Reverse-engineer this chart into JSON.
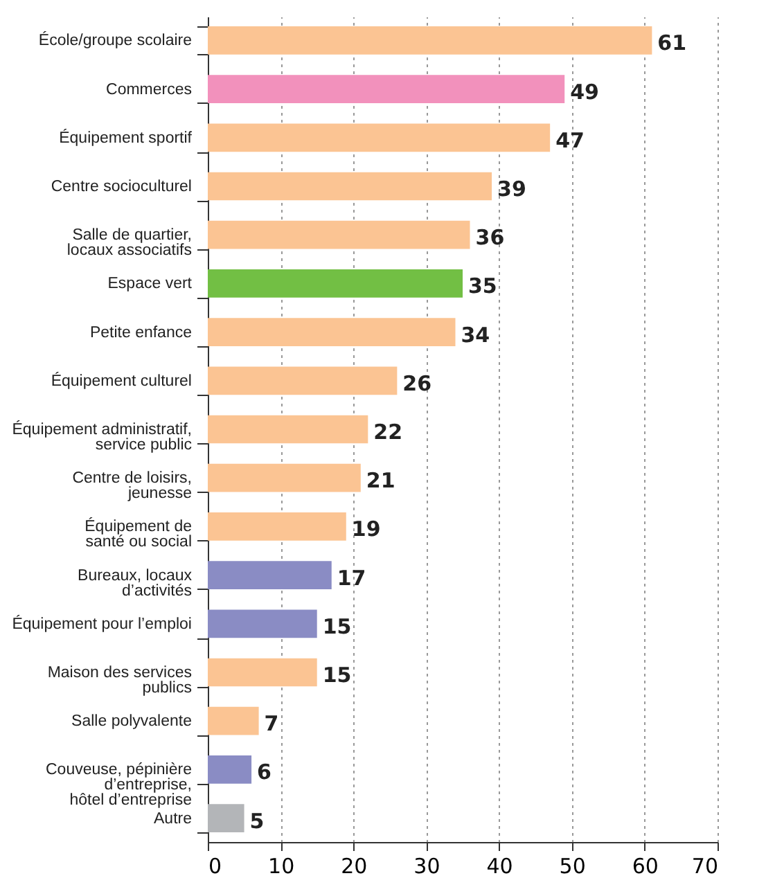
{
  "chart_data": {
    "type": "bar",
    "orientation": "horizontal",
    "categories": [
      "École/groupe scolaire",
      "Commerces",
      "Équipement sportif",
      "Centre socioculturel",
      "Salle de quartier,\nlocaux associatifs",
      "Espace vert",
      "Petite enfance",
      "Équipement culturel",
      "Équipement administratif,\nservice public",
      "Centre de loisirs,\njeunesse",
      "Équipement de\nsanté ou social",
      "Bureaux, locaux\nd’activités",
      "Équipement pour l’emploi",
      "Maison des services\npublics",
      "Salle polyvalente",
      "Couveuse, pépinière\nd’entreprise,\nhôtel d’entreprise",
      "Autre"
    ],
    "values": [
      61,
      49,
      47,
      39,
      36,
      35,
      34,
      26,
      22,
      21,
      19,
      17,
      15,
      15,
      7,
      6,
      5
    ],
    "colors": [
      "#fbc493",
      "#f291bc",
      "#fbc493",
      "#fbc493",
      "#fbc493",
      "#72bf44",
      "#fbc493",
      "#fbc493",
      "#fbc493",
      "#fbc493",
      "#fbc493",
      "#8a8cc4",
      "#8a8cc4",
      "#fbc493",
      "#fbc493",
      "#8a8cc4",
      "#b3b5b8"
    ],
    "xlim": [
      0,
      70
    ],
    "xticks": [
      0,
      10,
      20,
      30,
      40,
      50,
      60,
      70
    ],
    "grid": "x",
    "data_labels": true
  }
}
